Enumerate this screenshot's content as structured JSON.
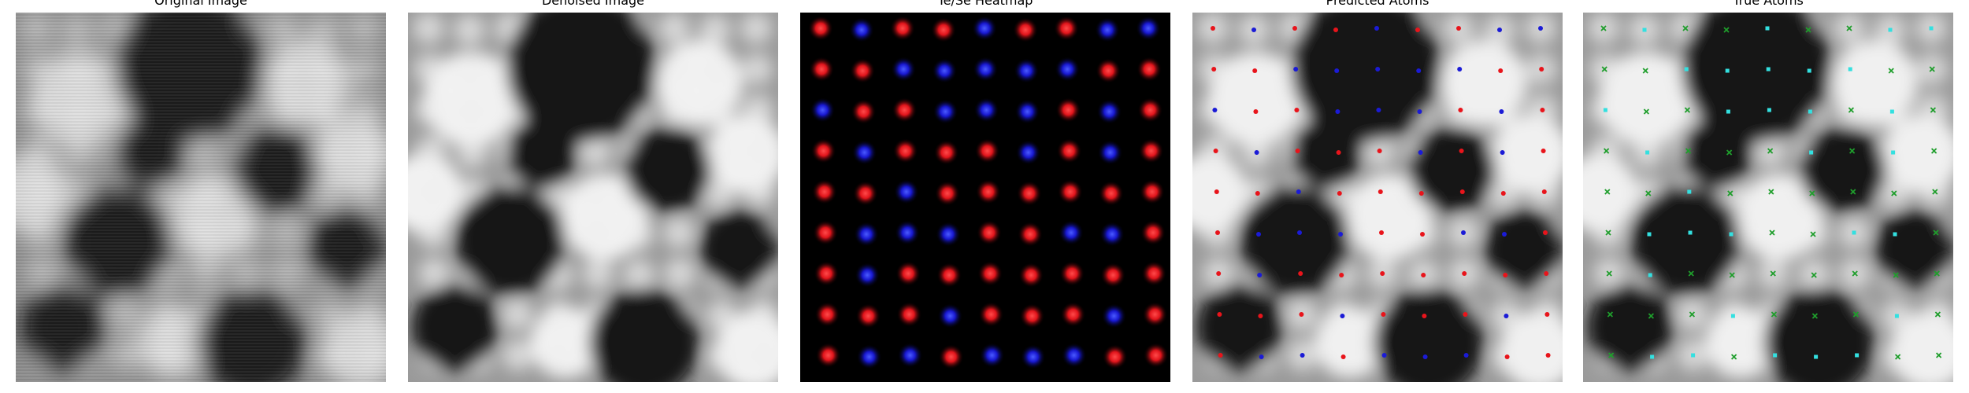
{
  "panels": [
    {
      "key": "original",
      "title": "Original Image"
    },
    {
      "key": "denoised",
      "title": "Denoised Image"
    },
    {
      "key": "heatmap",
      "title": "Te/Se Heatmap"
    },
    {
      "key": "predicted",
      "title": "Predicted Atoms"
    },
    {
      "key": "true",
      "title": "True Atoms"
    }
  ],
  "colors": {
    "te": "#e8141b",
    "se": "#1b1bd6",
    "true_te": "#1f9e2c",
    "true_se": "#33e0e0",
    "heatmap_bg": "#000000"
  },
  "lattice": {
    "rows": [
      [
        "te",
        "se",
        "te",
        "te",
        "se",
        "te",
        "te",
        "se",
        "se"
      ],
      [
        "te",
        "te",
        "se",
        "se",
        "se",
        "se",
        "se",
        "te",
        "te"
      ],
      [
        "se",
        "te",
        "te",
        "se",
        "se",
        "se",
        "te",
        "se",
        "te"
      ],
      [
        "te",
        "se",
        "te",
        "te",
        "te",
        "se",
        "te",
        "se",
        "te"
      ],
      [
        "te",
        "te",
        "se",
        "te",
        "te",
        "te",
        "te",
        "te",
        "te"
      ],
      [
        "te",
        "se",
        "se",
        "se",
        "te",
        "te",
        "se",
        "se",
        "te"
      ],
      [
        "te",
        "se",
        "te",
        "te",
        "te",
        "te",
        "te",
        "te",
        "te"
      ],
      [
        "te",
        "te",
        "te",
        "se",
        "te",
        "te",
        "te",
        "se",
        "te"
      ],
      [
        "te",
        "se",
        "se",
        "te",
        "se",
        "se",
        "se",
        "te",
        "te"
      ]
    ]
  }
}
